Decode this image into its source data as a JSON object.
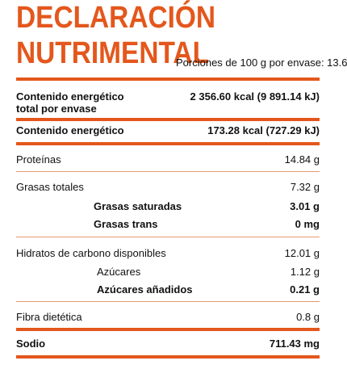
{
  "title_line1": "DECLARACIÓN",
  "title_line2": "NUTRIMENTAL",
  "servings": "Porciones de 100 g por envase: 13.6",
  "rows": {
    "energy_total": {
      "name_line1": "Contenido energético",
      "name_line2": "total por envase",
      "value": "2 356.60 kcal (9 891.14 kJ)"
    },
    "energy": {
      "name": "Contenido energético",
      "value": "173.28 kcal (727.29 kJ)"
    },
    "protein": {
      "name": "Proteínas",
      "value": "14.84 g"
    },
    "fat": {
      "name": "Grasas totales",
      "value": "7.32 g"
    },
    "sat_fat": {
      "name": "Grasas saturadas",
      "value": "3.01 g"
    },
    "trans_fat": {
      "name": "Grasas trans",
      "value": "0 mg"
    },
    "carbs": {
      "name": "Hidratos de carbono disponibles",
      "value": "12.01 g"
    },
    "sugars": {
      "name": "Azúcares",
      "value": "1.12 g"
    },
    "added_sugars": {
      "name": "Azúcares añadidos",
      "value": "0.21 g"
    },
    "fiber": {
      "name": "Fibra dietética",
      "value": "0.8 g"
    },
    "sodium": {
      "name": "Sodio",
      "value": "711.43 mg"
    }
  },
  "accent_color": "#e4571c"
}
